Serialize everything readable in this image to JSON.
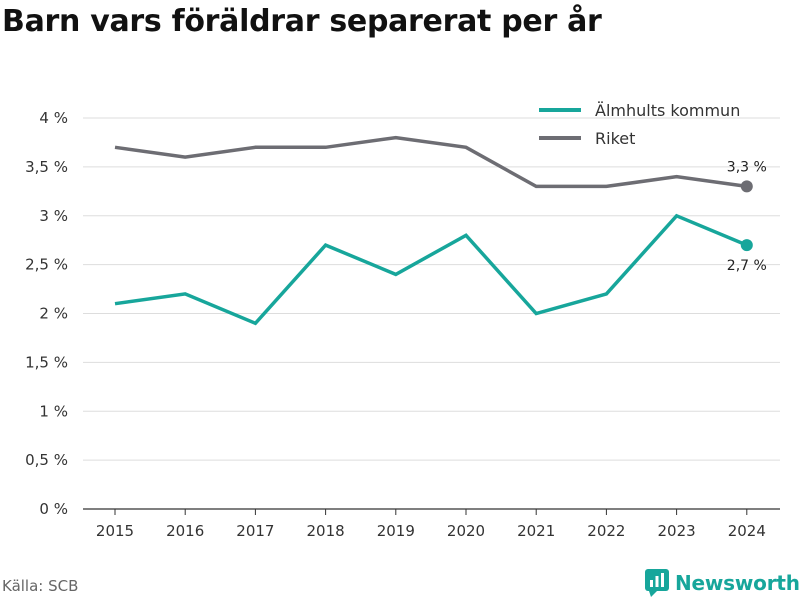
{
  "title": "Barn vars föräldrar separerat per år",
  "source": "Källa: SCB",
  "brand": {
    "name": "Newsworthy",
    "icon": "newsworthy-logo-icon"
  },
  "chart_data": {
    "type": "line",
    "title": "Barn vars föräldrar separerat per år",
    "x": [
      "2015",
      "2016",
      "2017",
      "2018",
      "2019",
      "2020",
      "2021",
      "2022",
      "2023",
      "2024"
    ],
    "series": [
      {
        "name": "Älmhults kommun",
        "color": "#17a69b",
        "values": [
          2.1,
          2.2,
          1.9,
          2.7,
          2.4,
          2.8,
          2.0,
          2.2,
          3.0,
          2.7
        ],
        "end_label": "2,7 %"
      },
      {
        "name": "Riket",
        "color": "#6d6d73",
        "values": [
          3.7,
          3.6,
          3.7,
          3.7,
          3.8,
          3.7,
          3.3,
          3.3,
          3.4,
          3.3
        ],
        "end_label": "3,3 %"
      }
    ],
    "ylim": [
      0,
      4
    ],
    "yticks": [
      0,
      0.5,
      1,
      1.5,
      2,
      2.5,
      3,
      3.5,
      4
    ],
    "ytick_labels": [
      "0 %",
      "0,5 %",
      "1 %",
      "1,5 %",
      "2 %",
      "2,5 %",
      "3 %",
      "3,5 %",
      "4 %"
    ],
    "grid": true,
    "legend": "top-right"
  }
}
